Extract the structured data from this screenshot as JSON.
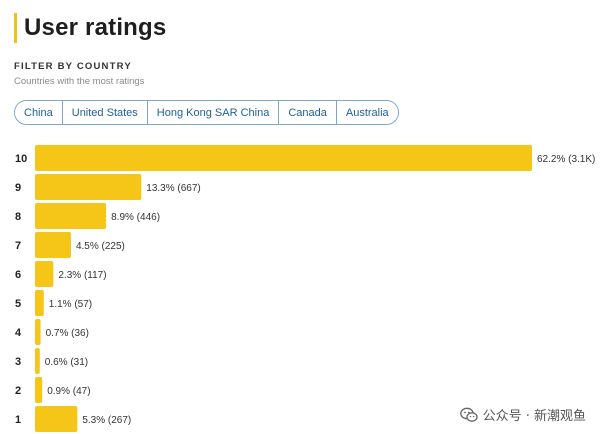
{
  "header": {
    "title": "User ratings"
  },
  "filter": {
    "title": "FILTER BY COUNTRY",
    "subtitle": "Countries with the most ratings",
    "countries": [
      "China",
      "United States",
      "Hong Kong SAR China",
      "Canada",
      "Australia"
    ]
  },
  "colors": {
    "bar": "#f5c518",
    "accent": "#f2c21b",
    "chip_border": "#7da6c8",
    "chip_text": "#1f5f99"
  },
  "chart_data": {
    "type": "bar",
    "orientation": "horizontal",
    "categories": [
      "10",
      "9",
      "8",
      "7",
      "6",
      "5",
      "4",
      "3",
      "2",
      "1"
    ],
    "values": [
      62.2,
      13.3,
      8.9,
      4.5,
      2.3,
      1.1,
      0.7,
      0.6,
      0.9,
      5.3
    ],
    "counts": [
      "3.1K",
      "667",
      "446",
      "225",
      "117",
      "57",
      "36",
      "31",
      "47",
      "267"
    ],
    "data_labels": [
      "62.2% (3.1K)",
      "13.3% (667)",
      "8.9% (446)",
      "4.5% (225)",
      "2.3% (117)",
      "1.1% (57)",
      "0.7% (36)",
      "0.6% (31)",
      "0.9% (47)",
      "5.3% (267)"
    ],
    "value_unit": "%",
    "title": "",
    "xlabel": "",
    "ylabel": "",
    "xlim": [
      0,
      62.2
    ],
    "grid": false,
    "legend": "none"
  },
  "watermark": {
    "text": "公众号 · 新潮观鱼",
    "icon": "wechat-icon"
  }
}
